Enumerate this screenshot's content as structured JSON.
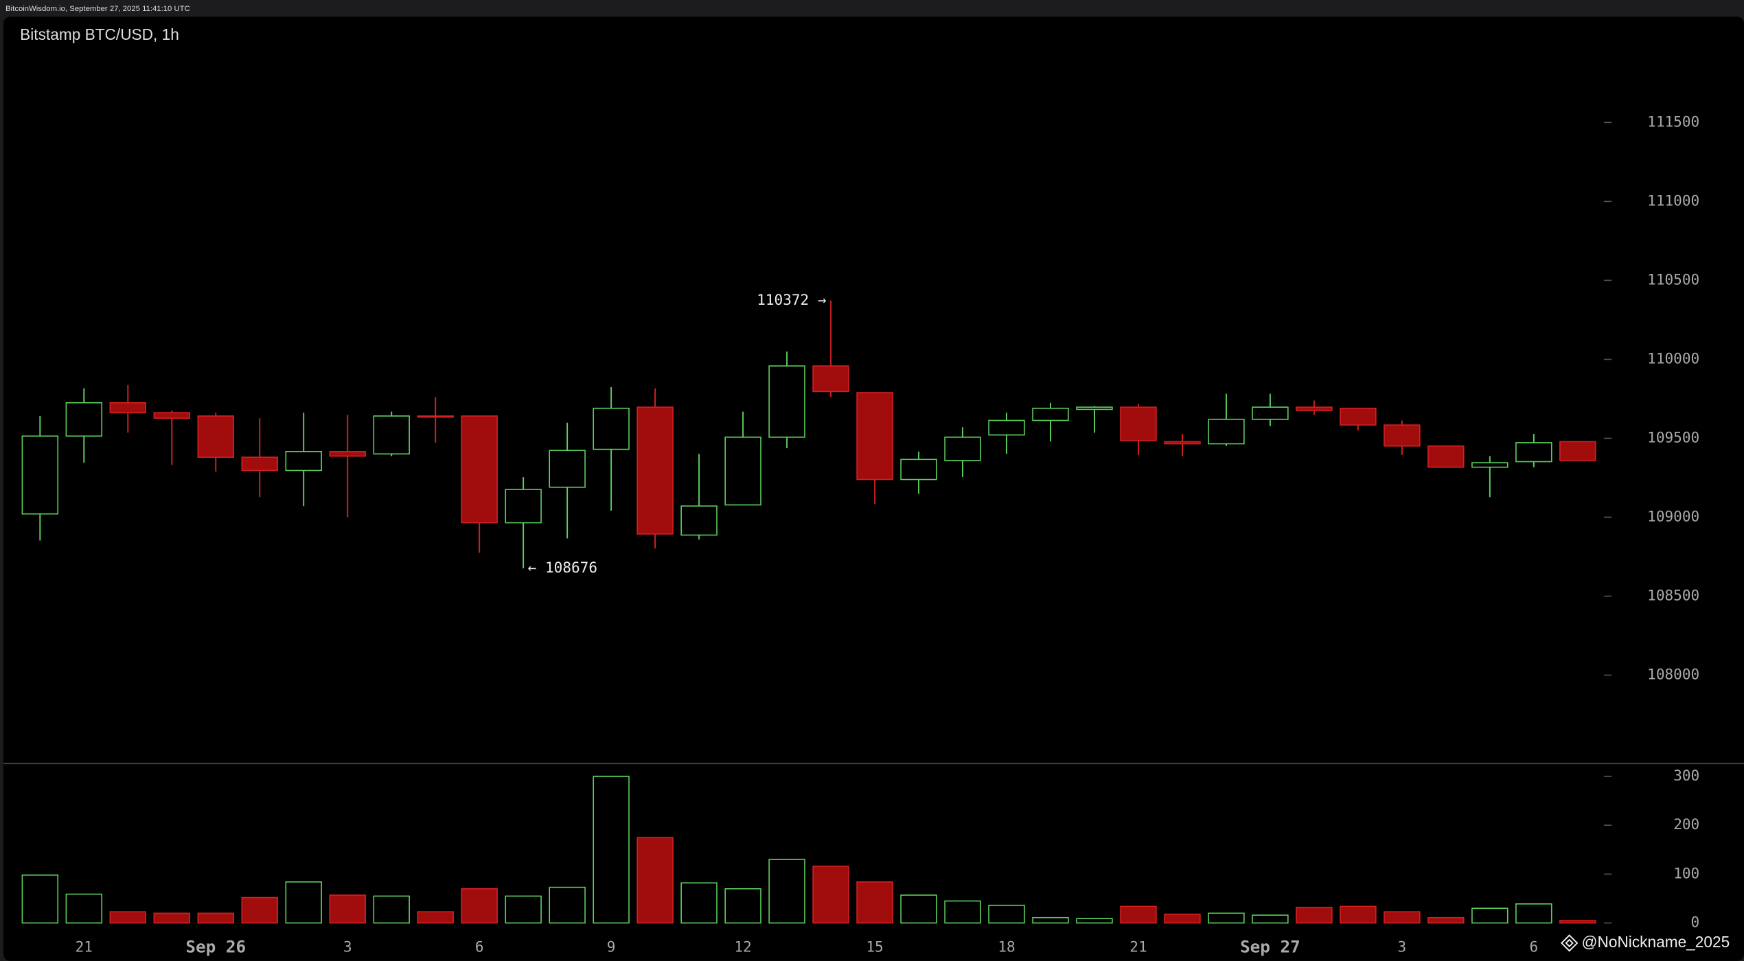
{
  "header": "BitcoinWisdom.io, September 27, 2025 11:41:10 UTC",
  "watermark": "@NoNickname_2025",
  "chart_data": [
    {
      "type": "candlestick",
      "title": "Bitstamp BTC/USD, 1h",
      "open": [
        109021,
        109514,
        109725,
        109662,
        109641,
        109380,
        109296,
        109416,
        109401,
        109641,
        109641,
        108965,
        109190,
        109430,
        109697,
        108887,
        109078,
        109507,
        109958,
        109789,
        109239,
        109359,
        109521,
        109613,
        109683,
        109697,
        109479,
        109465,
        109620,
        109697,
        109690,
        109584,
        109451,
        109317,
        109352,
        109479
      ],
      "high": [
        109641,
        109817,
        109838,
        109676,
        109662,
        109627,
        109662,
        109648,
        109669,
        109760,
        109641,
        109254,
        109599,
        109824,
        109817,
        109401,
        109669,
        110049,
        110372,
        109789,
        109416,
        109570,
        109662,
        109725,
        109704,
        109718,
        109528,
        109782,
        109782,
        109739,
        109690,
        109613,
        109451,
        109387,
        109528,
        109479
      ],
      "low": [
        108852,
        109345,
        109535,
        109331,
        109289,
        109127,
        109071,
        109000,
        109387,
        109472,
        108775,
        108676,
        108866,
        109042,
        108803,
        108859,
        109078,
        109437,
        109760,
        109085,
        109148,
        109254,
        109401,
        109479,
        109535,
        109394,
        109387,
        109451,
        109577,
        109648,
        109549,
        109394,
        109317,
        109127,
        109317,
        109359
      ],
      "close": [
        109514,
        109725,
        109662,
        109627,
        109380,
        109296,
        109416,
        109387,
        109641,
        109634,
        108965,
        109176,
        109423,
        109690,
        108894,
        109071,
        109507,
        109958,
        109796,
        109239,
        109366,
        109507,
        109613,
        109690,
        109697,
        109486,
        109465,
        109620,
        109697,
        109676,
        109584,
        109451,
        109317,
        109345,
        109472,
        109359
      ],
      "high_label": "110372 →",
      "low_label": "← 108676",
      "up_color": "#5ccf5c",
      "down_color": "#a10d0d",
      "ylim": [
        107444,
        112169
      ],
      "yticks": [
        108000,
        108500,
        109000,
        109500,
        110000,
        110500,
        111000,
        111500
      ]
    },
    {
      "type": "volume",
      "categories": [
        null,
        "21",
        null,
        null,
        "Sep 26",
        null,
        null,
        "3",
        null,
        null,
        "6",
        null,
        null,
        "9",
        null,
        null,
        "12",
        null,
        null,
        "15",
        null,
        null,
        "18",
        null,
        null,
        "21",
        null,
        null,
        "Sep 27",
        null,
        null,
        "3",
        null,
        null,
        "6",
        null
      ],
      "values": [
        98,
        59,
        23,
        20,
        20,
        52,
        84,
        57,
        55,
        23,
        70,
        55,
        73,
        300,
        175,
        82,
        70,
        130,
        116,
        84,
        57,
        45,
        36,
        11,
        9,
        34,
        18,
        20,
        16,
        32,
        34,
        23,
        11,
        30,
        39,
        5
      ],
      "ylim": [
        -73,
        323
      ],
      "yticks": [
        0,
        100,
        200,
        300
      ]
    }
  ]
}
